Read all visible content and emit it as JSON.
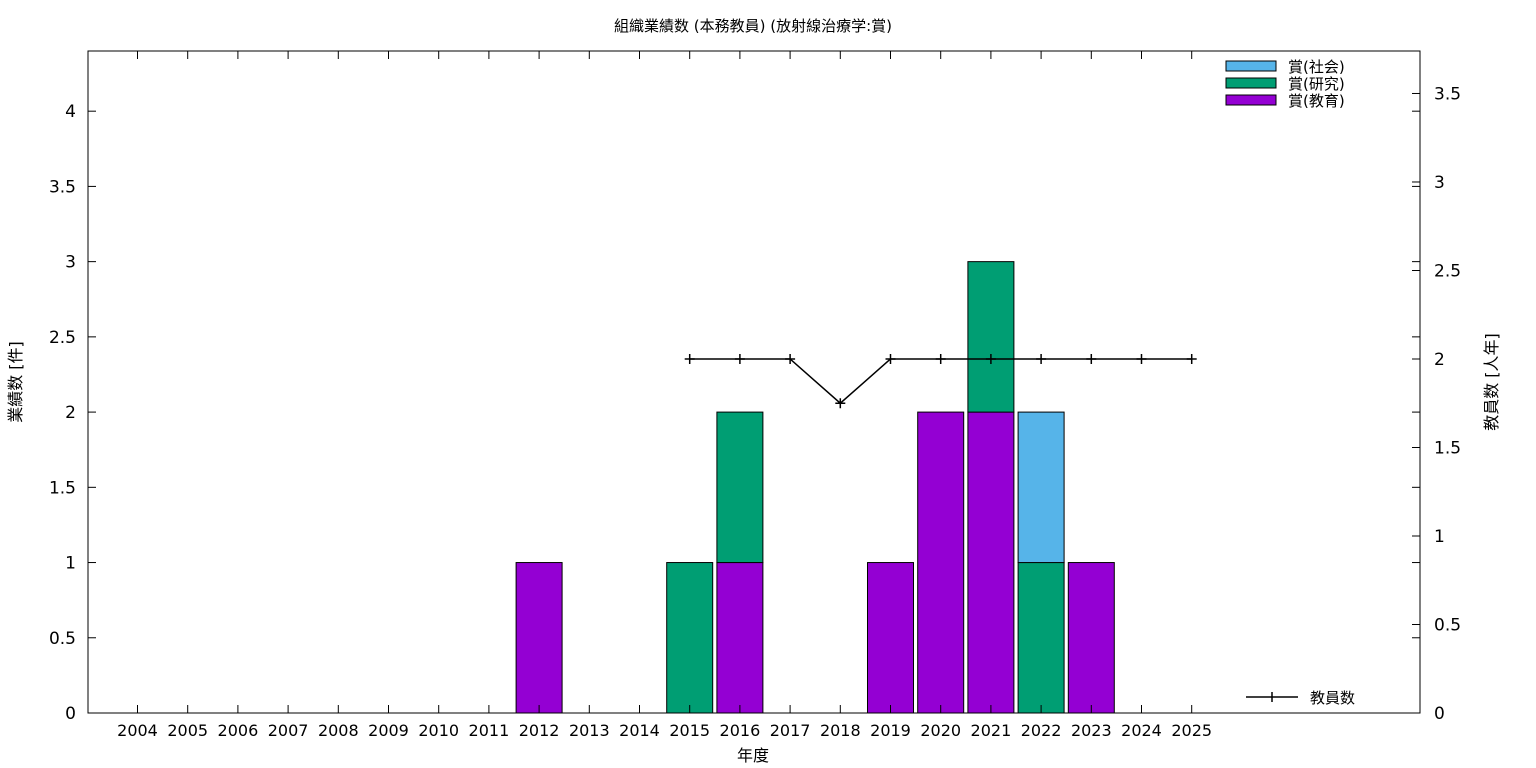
{
  "chart_data": {
    "type": "bar",
    "stacked": true,
    "title": "組織業績数 (本務教員) (放射線治療学:賞)",
    "xlabel": "年度",
    "ylabel": "業績数 [件]",
    "y2label": "教員数 [人年]",
    "categories": [
      "2004",
      "2005",
      "2006",
      "2007",
      "2008",
      "2009",
      "2010",
      "2011",
      "2012",
      "2013",
      "2014",
      "2015",
      "2016",
      "2017",
      "2018",
      "2019",
      "2020",
      "2021",
      "2022",
      "2023",
      "2024",
      "2025"
    ],
    "ylim": [
      0,
      4.4
    ],
    "y2lim": [
      0,
      3.74
    ],
    "yticks": [
      "0",
      "0.5",
      "1",
      "1.5",
      "2",
      "2.5",
      "3",
      "3.5",
      "4"
    ],
    "y2ticks": [
      "0",
      "0.5",
      "1",
      "1.5",
      "2",
      "2.5",
      "3",
      "3.5"
    ],
    "legend_position": "top-right",
    "series": [
      {
        "name": "賞(教育)",
        "color": "#9400d3",
        "values": [
          0,
          0,
          0,
          0,
          0,
          0,
          0,
          0,
          1,
          0,
          0,
          0,
          1,
          0,
          0,
          1,
          2,
          2,
          0,
          1,
          0,
          0
        ]
      },
      {
        "name": "賞(研究)",
        "color": "#009e73",
        "values": [
          0,
          0,
          0,
          0,
          0,
          0,
          0,
          0,
          0,
          0,
          0,
          1,
          1,
          0,
          0,
          0,
          0,
          1,
          1,
          0,
          0,
          0
        ]
      },
      {
        "name": "賞(社会)",
        "color": "#56b4e9",
        "values": [
          0,
          0,
          0,
          0,
          0,
          0,
          0,
          0,
          0,
          0,
          0,
          0,
          0,
          0,
          0,
          0,
          0,
          0,
          1,
          0,
          0,
          0
        ]
      }
    ],
    "line_series": {
      "name": "教員数",
      "color": "#000000",
      "x": [
        "2015",
        "2016",
        "2017",
        "2018",
        "2019",
        "2020",
        "2021",
        "2022",
        "2023",
        "2024",
        "2025"
      ],
      "values": [
        2,
        2,
        2,
        1.75,
        2,
        2,
        2,
        2,
        2,
        2,
        2
      ],
      "legend_position": "bottom-right"
    }
  }
}
